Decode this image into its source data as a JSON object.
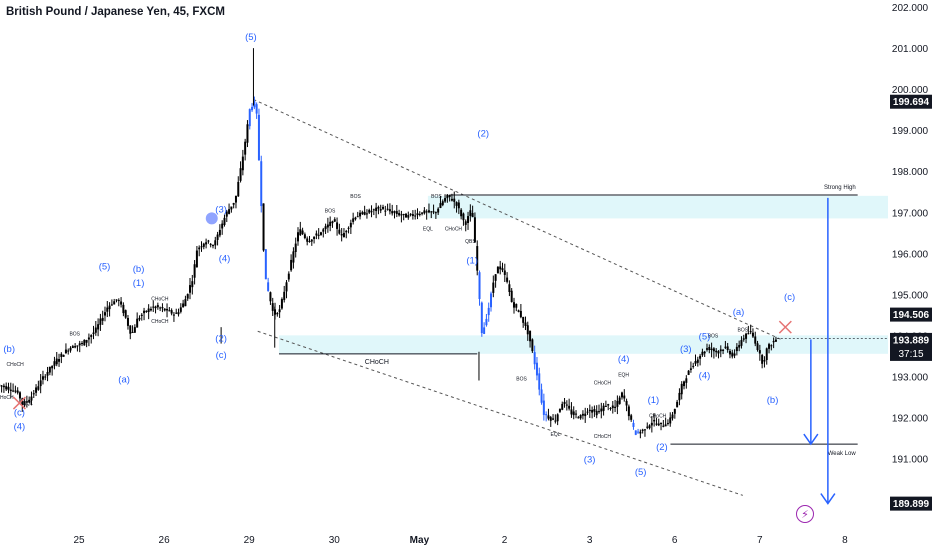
{
  "title": "British Pound / Japanese Yen, 45, FXCM",
  "lightning_icon": "lightning-icon",
  "colors": {
    "candle": "#000000",
    "impulse": "#2962ff",
    "wave_label": "#2962ff",
    "zone": "#e0f7fa",
    "trendline": "#555555",
    "cross": "#e57373",
    "accent_circle": "#90a4ff",
    "purple": "#9c27b0"
  },
  "chart_data": {
    "type": "candlestick",
    "ylim": [
      189.5,
      202.1
    ],
    "price_ticks": [
      "202.000",
      "201.000",
      "200.000",
      "199.000",
      "198.000",
      "197.000",
      "196.000",
      "195.000",
      "194.000",
      "193.000",
      "192.000",
      "191.000"
    ],
    "price_tick_values": [
      202,
      201,
      200,
      199,
      198,
      197,
      196,
      195,
      194,
      193,
      192,
      191
    ],
    "x_labels": [
      "25",
      "26",
      "29",
      "30",
      "May",
      "2",
      "3",
      "6",
      "7",
      "8"
    ],
    "x_label_days": [
      0.25,
      1.25,
      2.25,
      3.25,
      4.25,
      5.25,
      6.25,
      7.25,
      8.25,
      9.25
    ],
    "price_badges": [
      {
        "text": "199.694",
        "value": 199.694,
        "style": "dark"
      },
      {
        "text": "194.506",
        "value": 194.506,
        "style": "dark"
      },
      {
        "text": "193.889",
        "value": 193.889,
        "style": "dark",
        "sub": "37:15"
      },
      {
        "text": "189.899",
        "value": 189.899,
        "style": "dark"
      }
    ],
    "price_path": [
      [
        -0.7,
        192.8
      ],
      [
        -0.55,
        192.7
      ],
      [
        -0.45,
        192.6
      ],
      [
        -0.4,
        192.3
      ],
      [
        -0.3,
        192.5
      ],
      [
        -0.15,
        193.0
      ],
      [
        0.0,
        193.4
      ],
      [
        0.15,
        193.7
      ],
      [
        0.3,
        193.8
      ],
      [
        0.45,
        194.1
      ],
      [
        0.6,
        194.7
      ],
      [
        0.72,
        194.9
      ],
      [
        0.8,
        194.5
      ],
      [
        0.88,
        194.0
      ],
      [
        0.95,
        194.4
      ],
      [
        1.05,
        194.6
      ],
      [
        1.15,
        194.7
      ],
      [
        1.3,
        194.6
      ],
      [
        1.4,
        194.5
      ],
      [
        1.5,
        194.8
      ],
      [
        1.6,
        195.4
      ],
      [
        1.65,
        196.1
      ],
      [
        1.75,
        196.3
      ],
      [
        1.85,
        196.2
      ],
      [
        1.92,
        196.6
      ],
      [
        2.0,
        197.0
      ],
      [
        2.1,
        197.3
      ],
      [
        2.15,
        197.9
      ],
      [
        2.2,
        198.5
      ],
      [
        2.27,
        199.5
      ],
      [
        2.32,
        199.7
      ],
      [
        2.35,
        199.4
      ],
      [
        2.4,
        197.4
      ],
      [
        2.45,
        195.4
      ],
      [
        2.55,
        194.5
      ],
      [
        2.62,
        194.6
      ],
      [
        2.7,
        195.3
      ],
      [
        2.78,
        196.0
      ],
      [
        2.85,
        196.6
      ],
      [
        2.95,
        196.3
      ],
      [
        3.1,
        196.5
      ],
      [
        3.25,
        196.8
      ],
      [
        3.35,
        196.4
      ],
      [
        3.5,
        196.9
      ],
      [
        3.65,
        197.0
      ],
      [
        3.8,
        197.1
      ],
      [
        3.95,
        197.0
      ],
      [
        4.1,
        196.9
      ],
      [
        4.3,
        197.0
      ],
      [
        4.45,
        197.0
      ],
      [
        4.55,
        197.3
      ],
      [
        4.6,
        197.4
      ],
      [
        4.7,
        197.2
      ],
      [
        4.8,
        196.7
      ],
      [
        4.88,
        197.1
      ],
      [
        4.95,
        195.4
      ],
      [
        5.0,
        194.0
      ],
      [
        5.08,
        194.7
      ],
      [
        5.15,
        195.5
      ],
      [
        5.2,
        195.7
      ],
      [
        5.28,
        195.4
      ],
      [
        5.35,
        194.8
      ],
      [
        5.45,
        194.5
      ],
      [
        5.55,
        194.0
      ],
      [
        5.65,
        193.0
      ],
      [
        5.72,
        192.1
      ],
      [
        5.85,
        191.9
      ],
      [
        5.95,
        192.4
      ],
      [
        6.05,
        192.1
      ],
      [
        6.15,
        192.0
      ],
      [
        6.25,
        192.2
      ],
      [
        6.35,
        192.1
      ],
      [
        6.45,
        192.3
      ],
      [
        6.55,
        192.2
      ],
      [
        6.65,
        192.6
      ],
      [
        6.72,
        192.1
      ],
      [
        6.8,
        191.6
      ],
      [
        6.9,
        191.7
      ],
      [
        7.0,
        191.9
      ],
      [
        7.1,
        191.8
      ],
      [
        7.2,
        191.9
      ],
      [
        7.28,
        192.3
      ],
      [
        7.35,
        192.8
      ],
      [
        7.45,
        193.2
      ],
      [
        7.55,
        193.5
      ],
      [
        7.65,
        193.7
      ],
      [
        7.75,
        193.6
      ],
      [
        7.85,
        193.7
      ],
      [
        7.95,
        193.5
      ],
      [
        8.05,
        193.9
      ],
      [
        8.15,
        194.1
      ],
      [
        8.2,
        193.9
      ],
      [
        8.25,
        193.6
      ],
      [
        8.3,
        193.3
      ],
      [
        8.35,
        193.7
      ],
      [
        8.45,
        193.9
      ]
    ],
    "impulse_segments": [
      [
        2.22,
        2.4
      ],
      [
        4.93,
        5.08
      ],
      [
        5.58,
        5.74
      ],
      [
        2.41,
        2.47
      ],
      [
        6.73,
        6.82
      ]
    ],
    "zones": [
      {
        "from_x": 4.35,
        "y_top": 197.4,
        "y_bottom": 196.85
      },
      {
        "from_x": 2.6,
        "y_top": 194.0,
        "y_bottom": 193.55
      }
    ],
    "trendlines": [
      {
        "x1": 2.3,
        "y1": 199.75,
        "x2": 8.5,
        "y2": 193.9,
        "dash": true
      },
      {
        "x1": 2.35,
        "y1": 194.1,
        "x2": 8.05,
        "y2": 190.1,
        "dash": true
      }
    ],
    "levels": [
      {
        "x1": 4.6,
        "y": 197.42,
        "x2": 9.4,
        "label": "Strong High"
      },
      {
        "x1": 7.2,
        "y": 191.35,
        "x2": 9.4,
        "label": "Weak Low"
      },
      {
        "x1": 2.6,
        "y": 193.55,
        "x2": 4.93,
        "label": "CHoCH"
      }
    ],
    "wave_labels": [
      {
        "x": 2.27,
        "y": 201.2,
        "t": "(5)"
      },
      {
        "x": 1.92,
        "y": 197.0,
        "t": "(3)"
      },
      {
        "x": 1.96,
        "y": 195.8,
        "t": "(4)"
      },
      {
        "x": 1.92,
        "y": 193.85,
        "t": "(2)"
      },
      {
        "x": 1.92,
        "y": 193.45,
        "t": "(c)"
      },
      {
        "x": 0.55,
        "y": 195.6,
        "t": "(5)"
      },
      {
        "x": 0.95,
        "y": 195.55,
        "t": "(b)"
      },
      {
        "x": 0.95,
        "y": 195.2,
        "t": "(1)"
      },
      {
        "x": 0.78,
        "y": 192.85,
        "t": "(a)"
      },
      {
        "x": -0.74,
        "y": 193.9,
        "t": "(3)"
      },
      {
        "x": -0.74,
        "y": 193.6,
        "t": "(5)"
      },
      {
        "x": -0.57,
        "y": 193.6,
        "t": "(b)"
      },
      {
        "x": -0.45,
        "y": 192.05,
        "t": "(c)"
      },
      {
        "x": -0.45,
        "y": 191.7,
        "t": "(4)"
      },
      {
        "x": 5.0,
        "y": 198.85,
        "t": "(2)"
      },
      {
        "x": 4.87,
        "y": 195.75,
        "t": "(1)"
      },
      {
        "x": 7.1,
        "y": 191.2,
        "t": "(2)"
      },
      {
        "x": 6.25,
        "y": 190.9,
        "t": "(3)"
      },
      {
        "x": 6.85,
        "y": 190.6,
        "t": "(5)"
      },
      {
        "x": 6.65,
        "y": 193.35,
        "t": "(4)"
      },
      {
        "x": 7.0,
        "y": 192.35,
        "t": "(1)"
      },
      {
        "x": 7.38,
        "y": 193.6,
        "t": "(3)"
      },
      {
        "x": 7.6,
        "y": 192.95,
        "t": "(4)"
      },
      {
        "x": 7.6,
        "y": 193.9,
        "t": "(5)"
      },
      {
        "x": 8.0,
        "y": 194.5,
        "t": "(a)"
      },
      {
        "x": 8.4,
        "y": 192.35,
        "t": "(b)"
      },
      {
        "x": 8.6,
        "y": 194.86,
        "t": "(c)"
      }
    ],
    "small_labels": [
      {
        "x": 0.2,
        "y": 194.0,
        "t": "BOS"
      },
      {
        "x": 1.2,
        "y": 194.85,
        "t": "CHoCH"
      },
      {
        "x": 1.2,
        "y": 194.3,
        "t": "CHoCH"
      },
      {
        "x": -0.5,
        "y": 193.25,
        "t": "CHoCH"
      },
      {
        "x": -0.62,
        "y": 192.45,
        "t": "CHoCH"
      },
      {
        "x": -0.35,
        "y": 192.3,
        "t": "EQL"
      },
      {
        "x": 3.2,
        "y": 197.0,
        "t": "BOS"
      },
      {
        "x": 3.5,
        "y": 197.35,
        "t": "BOS"
      },
      {
        "x": 4.45,
        "y": 197.35,
        "t": "BOS"
      },
      {
        "x": 4.35,
        "y": 196.55,
        "t": "EQL"
      },
      {
        "x": 4.65,
        "y": 196.55,
        "t": "CHoCH"
      },
      {
        "x": 4.85,
        "y": 196.25,
        "t": "QBS"
      },
      {
        "x": 5.45,
        "y": 192.9,
        "t": "BOS"
      },
      {
        "x": 5.85,
        "y": 191.55,
        "t": "EQL"
      },
      {
        "x": 6.4,
        "y": 192.8,
        "t": "CHoCH"
      },
      {
        "x": 6.65,
        "y": 193.0,
        "t": "EQH"
      },
      {
        "x": 6.4,
        "y": 191.5,
        "t": "CHoCH"
      },
      {
        "x": 7.05,
        "y": 192.0,
        "t": "CHoCH"
      },
      {
        "x": 7.7,
        "y": 193.95,
        "t": "BOS"
      },
      {
        "x": 8.05,
        "y": 194.1,
        "t": "BOS"
      }
    ],
    "choch_label": {
      "x": 3.75,
      "y": 193.3,
      "t": "CHoCH"
    },
    "arrows": [
      {
        "x": 9.05,
        "y1": 197.35,
        "y2": 189.9
      },
      {
        "x": 8.85,
        "y1": 193.9,
        "y2": 191.35
      }
    ],
    "crosses": [
      {
        "x": -0.45,
        "y": 192.35
      },
      {
        "x": 8.55,
        "y": 194.2
      }
    ],
    "accent_circle": {
      "x": 1.81,
      "y": 196.85
    }
  }
}
